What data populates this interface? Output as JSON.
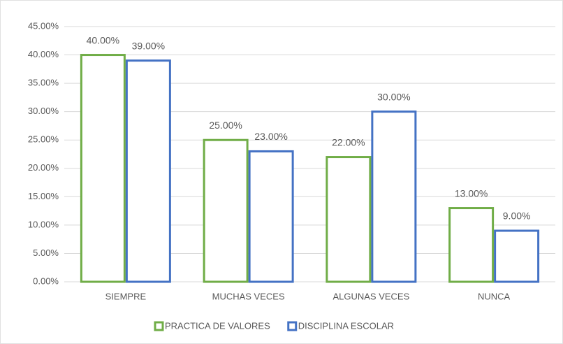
{
  "chart_data": {
    "type": "bar",
    "categories": [
      "SIEMPRE",
      "MUCHAS VECES",
      "ALGUNAS VECES",
      "NUNCA"
    ],
    "series": [
      {
        "name": "PRACTICA DE VALORES",
        "color": "#70ad47",
        "values": [
          40,
          25,
          22,
          13
        ],
        "value_labels": [
          "40.00%",
          "25.00%",
          "22.00%",
          "13.00%"
        ]
      },
      {
        "name": "DISCIPLINA ESCOLAR",
        "color": "#4472c4",
        "values": [
          39,
          23,
          30,
          9
        ],
        "value_labels": [
          "39.00%",
          "23.00%",
          "30.00%",
          "9.00%"
        ]
      }
    ],
    "ylim": [
      0,
      45
    ],
    "yticks": [
      {
        "value": 0,
        "label": "0.00%"
      },
      {
        "value": 5,
        "label": "5.00%"
      },
      {
        "value": 10,
        "label": "10.00%"
      },
      {
        "value": 15,
        "label": "15.00%"
      },
      {
        "value": 20,
        "label": "20.00%"
      },
      {
        "value": 25,
        "label": "25.00%"
      },
      {
        "value": 30,
        "label": "30.00%"
      },
      {
        "value": 35,
        "label": "35.00%"
      },
      {
        "value": 40,
        "label": "40.00%"
      },
      {
        "value": 45,
        "label": "45.00%"
      }
    ],
    "grid": true,
    "legend": "bottom"
  }
}
